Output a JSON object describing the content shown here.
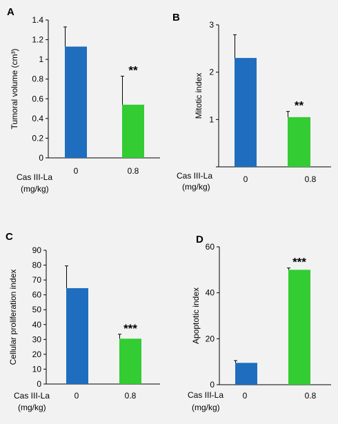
{
  "colors": {
    "control": "#1f6dbf",
    "treated": "#33cc33",
    "axis": "#000000",
    "background": "#f2f2f2"
  },
  "chart_data": [
    {
      "type": "bar",
      "panel": "A",
      "categories": [
        "0",
        "0.8"
      ],
      "values": [
        1.13,
        0.54
      ],
      "errors": [
        0.2,
        0.29
      ],
      "significance": [
        "",
        "**"
      ],
      "ylabel": "Tumoral volume (cm³)",
      "xlabel": [
        "Cas III-La",
        "(mg/kg)"
      ],
      "ylim": [
        0,
        1.4
      ],
      "yticks": [
        "0",
        "0.2",
        "0.4",
        "0.6",
        "0.8",
        "1",
        "1.2",
        "1.4"
      ],
      "bar_colors": [
        "#1f6dbf",
        "#33cc33"
      ]
    },
    {
      "type": "bar",
      "panel": "B",
      "categories": [
        "0",
        "0.8"
      ],
      "values": [
        2.3,
        1.05
      ],
      "errors": [
        0.49,
        0.12
      ],
      "significance": [
        "",
        "**"
      ],
      "ylabel": "Mitotic index",
      "xlabel": [
        "Cas III-La",
        "(mg/kg)"
      ],
      "ylim": [
        0,
        3
      ],
      "yticks": [
        "",
        "1",
        "2",
        "3"
      ],
      "bar_colors": [
        "#1f6dbf",
        "#33cc33"
      ]
    },
    {
      "type": "bar",
      "panel": "C",
      "categories": [
        "0",
        "0.8"
      ],
      "values": [
        64.5,
        30.5
      ],
      "errors": [
        15,
        3
      ],
      "significance": [
        "",
        "***"
      ],
      "ylabel": "Cellular proliferation index",
      "xlabel": [
        "Cas III-La",
        "(mg/kg)"
      ],
      "ylim": [
        0,
        90
      ],
      "yticks": [
        "0",
        "10",
        "20",
        "30",
        "40",
        "50",
        "60",
        "70",
        "80",
        "90"
      ],
      "bar_colors": [
        "#1f6dbf",
        "#33cc33"
      ]
    },
    {
      "type": "bar",
      "panel": "D",
      "categories": [
        "0",
        "0.8"
      ],
      "values": [
        9.5,
        50
      ],
      "errors": [
        1,
        0.8
      ],
      "significance": [
        "",
        "***"
      ],
      "ylabel": "Apoptotic index",
      "xlabel": [
        "Cas III-La",
        "(mg/kg)"
      ],
      "ylim": [
        0,
        60
      ],
      "yticks": [
        "0",
        "20",
        "40",
        "60"
      ],
      "bar_colors": [
        "#1f6dbf",
        "#33cc33"
      ]
    }
  ]
}
